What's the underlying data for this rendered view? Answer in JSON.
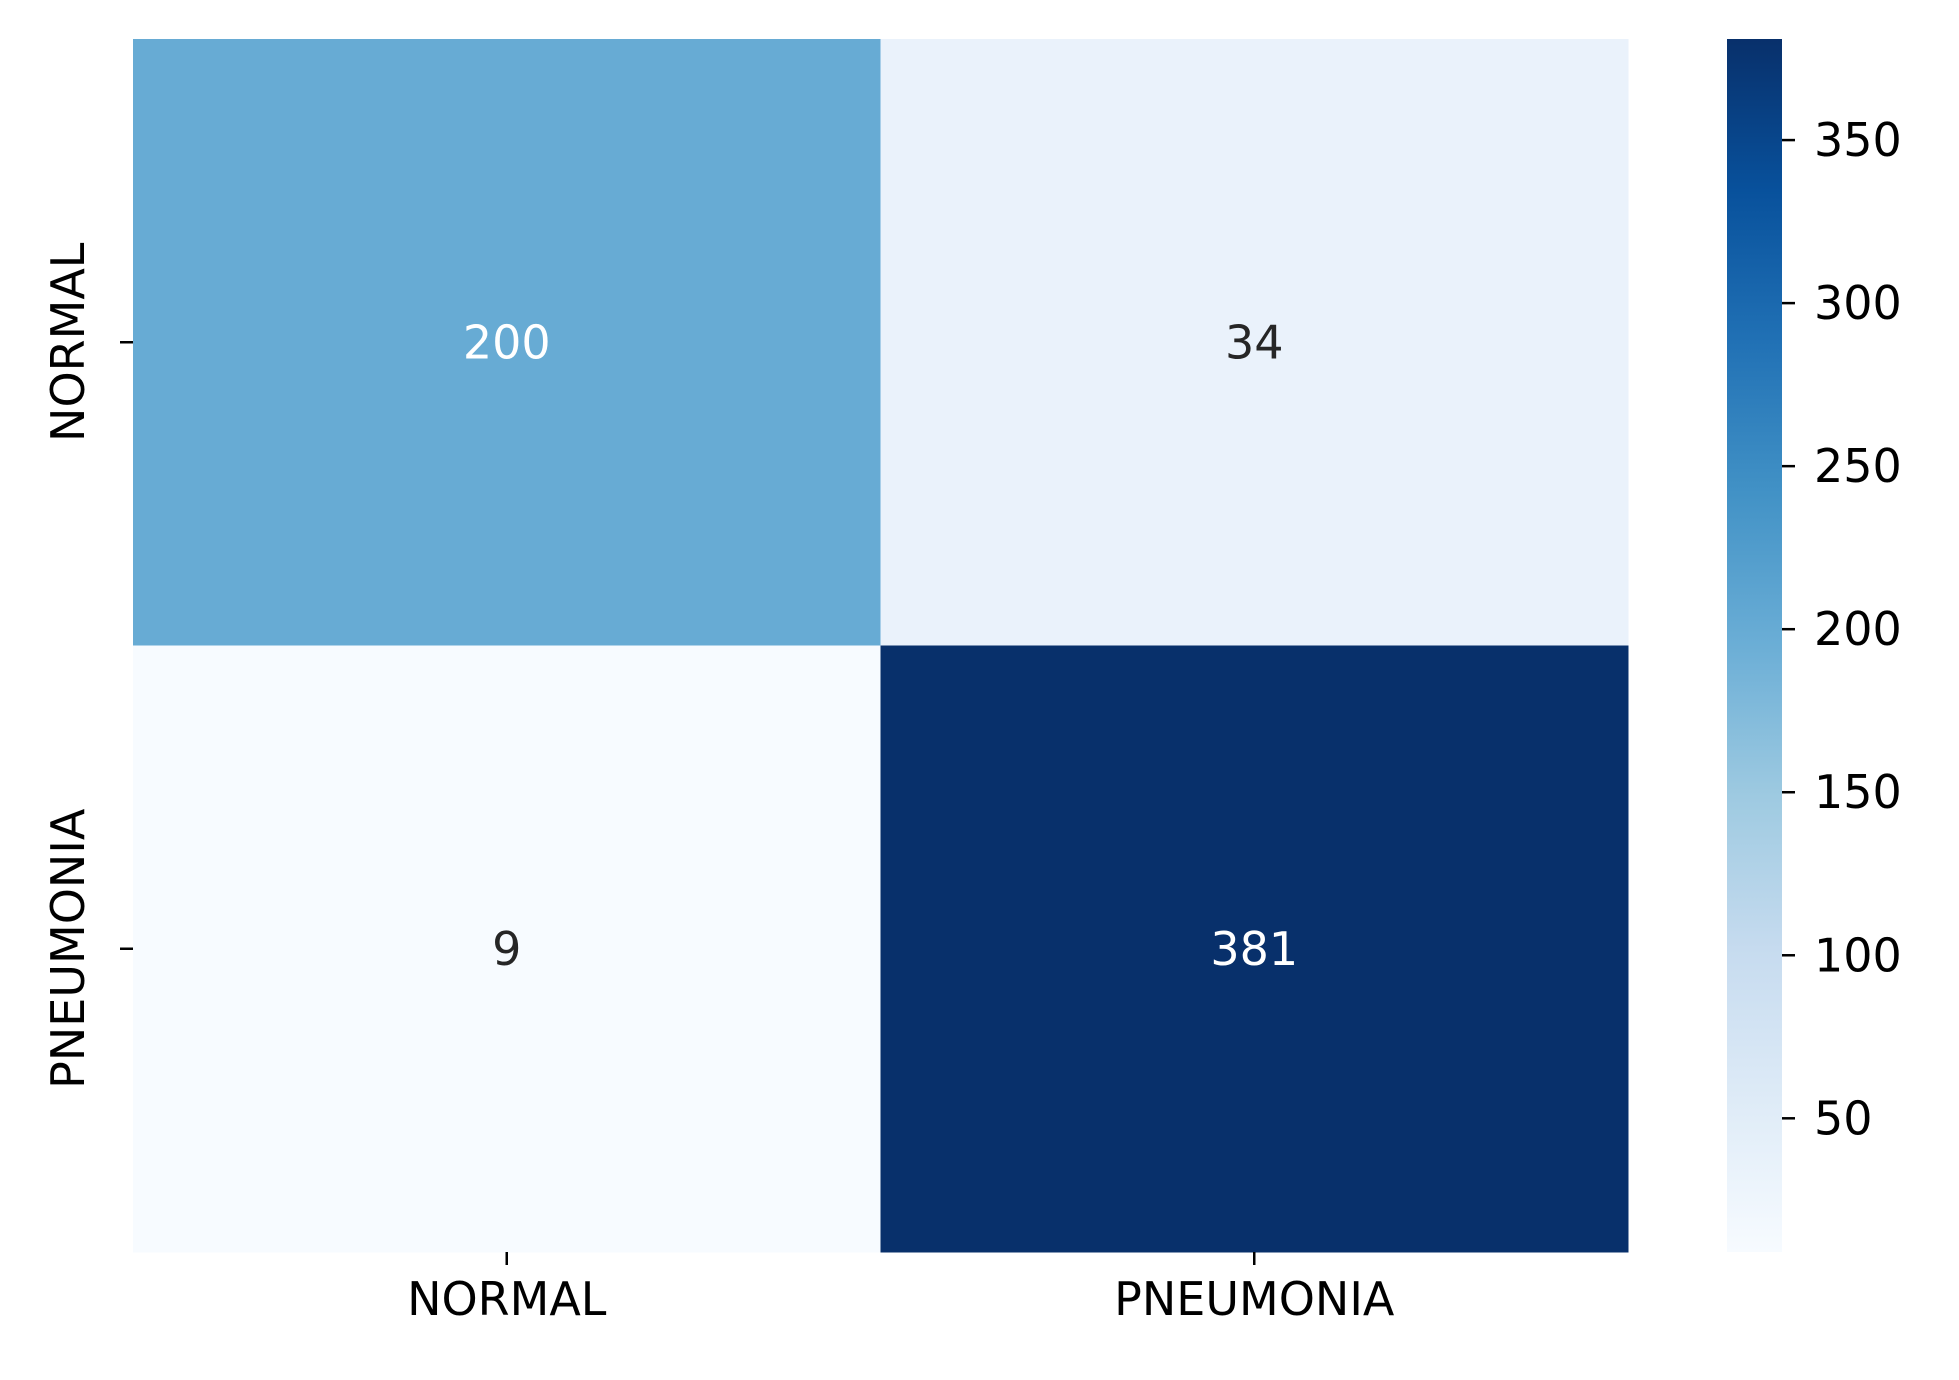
{
  "chart_data": {
    "type": "heatmap",
    "title": "",
    "xlabel": "",
    "ylabel": "",
    "x_categories": [
      "NORMAL",
      "PNEUMONIA"
    ],
    "y_categories": [
      "NORMAL",
      "PNEUMONIA"
    ],
    "matrix": [
      [
        200,
        34
      ],
      [
        9,
        381
      ]
    ],
    "colormap": "Blues",
    "colorbar": {
      "range": [
        9,
        381
      ],
      "ticks": [
        50,
        100,
        150,
        200,
        250,
        300,
        350
      ]
    },
    "annotations": true,
    "colors": {
      "scale": [
        "#f7fbff",
        "#deebf7",
        "#c6dbef",
        "#9ecae1",
        "#6baed6",
        "#4292c6",
        "#2171b5",
        "#08519c",
        "#08306b"
      ],
      "annotation_light": "#ffffff",
      "annotation_dark": "#262626"
    }
  }
}
